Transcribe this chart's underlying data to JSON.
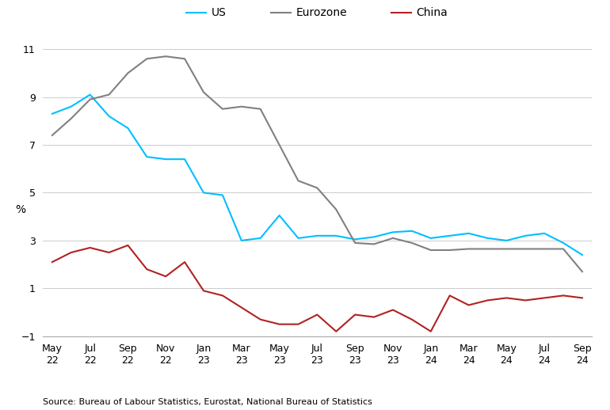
{
  "x_labels": [
    "May\n22",
    "Jul\n22",
    "Sep\n22",
    "Nov\n22",
    "Jan\n23",
    "Mar\n23",
    "May\n23",
    "Jul\n23",
    "Sep\n23",
    "Nov\n23",
    "Jan\n24",
    "Mar\n24",
    "May\n24",
    "Jul\n24",
    "Sep\n24"
  ],
  "x_tick_positions": [
    0,
    2,
    4,
    6,
    8,
    10,
    12,
    14,
    16,
    18,
    20,
    22,
    24,
    26,
    28
  ],
  "us": [
    8.3,
    8.6,
    9.1,
    8.2,
    7.7,
    6.5,
    6.4,
    6.4,
    5.0,
    4.9,
    3.0,
    3.1,
    4.05,
    3.1,
    3.2,
    3.2,
    3.05,
    3.15,
    3.35,
    3.4,
    3.1,
    3.2,
    3.3,
    3.1,
    3.0,
    3.2,
    3.3,
    2.9,
    2.4
  ],
  "eurozone": [
    7.4,
    8.1,
    8.9,
    9.1,
    10.0,
    10.6,
    10.7,
    10.6,
    9.2,
    8.5,
    8.6,
    8.5,
    7.0,
    5.5,
    5.2,
    4.3,
    2.9,
    2.85,
    3.1,
    2.9,
    2.6,
    2.6,
    2.65,
    2.65,
    2.65,
    2.65,
    2.65,
    2.65,
    1.7
  ],
  "china": [
    2.1,
    2.5,
    2.7,
    2.5,
    2.8,
    1.8,
    1.5,
    2.1,
    0.9,
    0.7,
    0.2,
    -0.3,
    -0.5,
    -0.5,
    -0.1,
    -0.8,
    -0.1,
    -0.2,
    0.1,
    -0.3,
    -0.8,
    0.7,
    0.3,
    0.5,
    0.6,
    0.5,
    0.6,
    0.7,
    0.6
  ],
  "us_color": "#00BFFF",
  "eurozone_color": "#808080",
  "china_color": "#B22222",
  "ylim": [
    -1,
    11
  ],
  "yticks": [
    -1,
    1,
    3,
    5,
    7,
    9,
    11
  ],
  "ylabel": "%",
  "source_text": "Source: Bureau of Labour Statistics, Eurostat, National Bureau of Statistics",
  "background_color": "#ffffff",
  "grid_color": "#cccccc"
}
